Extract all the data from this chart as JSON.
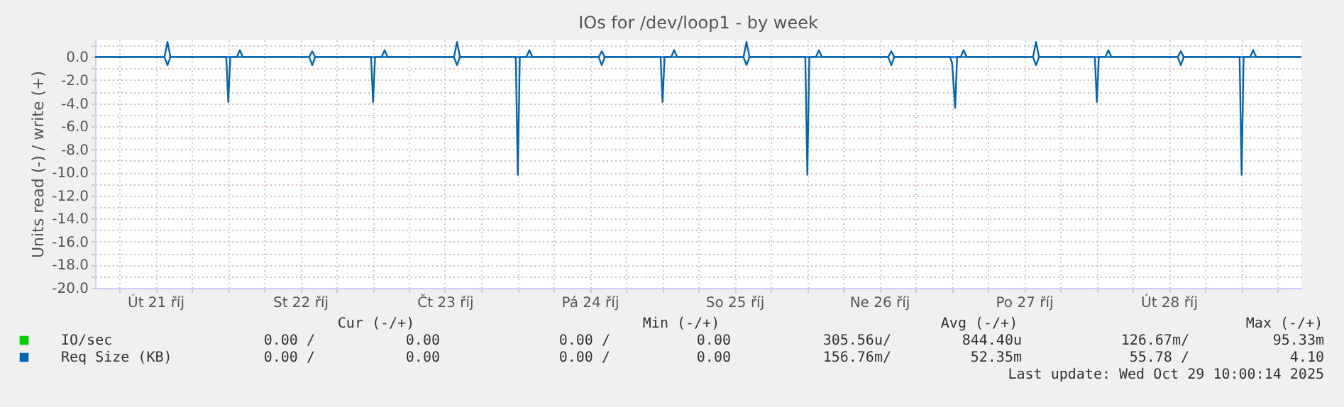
{
  "chart_data": {
    "type": "line",
    "title": "IOs for /dev/loop1 - by week",
    "ylabel": "Units read (-) / write (+)",
    "xlim": [
      "2025-10-21T02:00",
      "2025-10-29T10:00"
    ],
    "ylim": [
      -20,
      1.5
    ],
    "yticks": [
      {
        "value": 1,
        "label": null
      },
      {
        "value": 0,
        "label": "0.0"
      },
      {
        "value": -1,
        "label": null
      },
      {
        "value": -2,
        "label": "-2.0"
      },
      {
        "value": -3,
        "label": null
      },
      {
        "value": -4,
        "label": "-4.0"
      },
      {
        "value": -5,
        "label": null
      },
      {
        "value": -6,
        "label": "-6.0"
      },
      {
        "value": -7,
        "label": null
      },
      {
        "value": -8,
        "label": "-8.0"
      },
      {
        "value": -9,
        "label": null
      },
      {
        "value": -10,
        "label": "-10.0"
      },
      {
        "value": -11,
        "label": null
      },
      {
        "value": -12,
        "label": "-12.0"
      },
      {
        "value": -13,
        "label": null
      },
      {
        "value": -14,
        "label": "-14.0"
      },
      {
        "value": -15,
        "label": null
      },
      {
        "value": -16,
        "label": "-16.0"
      },
      {
        "value": -17,
        "label": null
      },
      {
        "value": -18,
        "label": "-18.0"
      },
      {
        "value": -19,
        "label": null
      },
      {
        "value": -20,
        "label": "-20.0"
      }
    ],
    "xticks": [
      {
        "value": "2025-10-21T06:00",
        "label": null
      },
      {
        "value": "2025-10-21T12:00",
        "label": "Út 21 říj"
      },
      {
        "value": "2025-10-21T18:00",
        "label": null
      },
      {
        "value": "2025-10-22T00:00",
        "label": null
      },
      {
        "value": "2025-10-22T06:00",
        "label": null
      },
      {
        "value": "2025-10-22T12:00",
        "label": "St 22 říj"
      },
      {
        "value": "2025-10-22T18:00",
        "label": null
      },
      {
        "value": "2025-10-23T00:00",
        "label": null
      },
      {
        "value": "2025-10-23T06:00",
        "label": null
      },
      {
        "value": "2025-10-23T12:00",
        "label": "Čt 23 říj"
      },
      {
        "value": "2025-10-23T18:00",
        "label": null
      },
      {
        "value": "2025-10-24T00:00",
        "label": null
      },
      {
        "value": "2025-10-24T06:00",
        "label": null
      },
      {
        "value": "2025-10-24T12:00",
        "label": "Pá 24 říj"
      },
      {
        "value": "2025-10-24T18:00",
        "label": null
      },
      {
        "value": "2025-10-25T00:00",
        "label": null
      },
      {
        "value": "2025-10-25T06:00",
        "label": null
      },
      {
        "value": "2025-10-25T12:00",
        "label": "So 25 říj"
      },
      {
        "value": "2025-10-25T18:00",
        "label": null
      },
      {
        "value": "2025-10-26T00:00",
        "label": null
      },
      {
        "value": "2025-10-26T06:00",
        "label": null
      },
      {
        "value": "2025-10-26T12:00",
        "label": "Ne 26 říj"
      },
      {
        "value": "2025-10-26T18:00",
        "label": null
      },
      {
        "value": "2025-10-27T00:00",
        "label": null
      },
      {
        "value": "2025-10-27T06:00",
        "label": null
      },
      {
        "value": "2025-10-27T12:00",
        "label": "Po 27 říj"
      },
      {
        "value": "2025-10-27T18:00",
        "label": null
      },
      {
        "value": "2025-10-28T00:00",
        "label": null
      },
      {
        "value": "2025-10-28T06:00",
        "label": null
      },
      {
        "value": "2025-10-28T12:00",
        "label": "Út 28 říj"
      },
      {
        "value": "2025-10-28T18:00",
        "label": null
      },
      {
        "value": "2025-10-29T00:00",
        "label": null
      },
      {
        "value": "2025-10-29T06:00",
        "label": null
      }
    ],
    "grid": true,
    "legend": "bottom",
    "line_style": "solid",
    "marker": "none",
    "series": [
      {
        "name": "IO/sec",
        "color": "#00cc00"
      },
      {
        "name": "Req Size (KB)",
        "color": "#0066b3",
        "x": [
          "2025-10-21T02:00",
          "2025-10-21T13:30",
          "2025-10-21T14:00",
          "2025-10-21T14:30",
          "2025-10-21T23:45",
          "2025-10-22T00:05",
          "2025-10-22T00:25",
          "2025-10-22T13:30",
          "2025-10-22T14:00",
          "2025-10-22T14:30",
          "2025-10-22T23:45",
          "2025-10-23T00:05",
          "2025-10-23T00:25",
          "2025-10-23T13:30",
          "2025-10-23T14:00",
          "2025-10-23T14:30",
          "2025-10-23T23:45",
          "2025-10-24T00:05",
          "2025-10-24T00:25",
          "2025-10-24T13:30",
          "2025-10-24T14:00",
          "2025-10-24T14:30",
          "2025-10-24T23:45",
          "2025-10-25T00:05",
          "2025-10-25T00:25",
          "2025-10-25T13:30",
          "2025-10-25T14:00",
          "2025-10-25T14:30",
          "2025-10-25T23:45",
          "2025-10-26T00:05",
          "2025-10-26T00:25",
          "2025-10-26T13:30",
          "2025-10-26T14:00",
          "2025-10-26T14:30",
          "2025-10-26T23:45",
          "2025-10-27T00:05",
          "2025-10-27T00:35",
          "2025-10-27T00:55",
          "2025-10-27T13:30",
          "2025-10-27T14:00",
          "2025-10-27T14:30",
          "2025-10-27T23:45",
          "2025-10-28T00:05",
          "2025-10-28T00:25",
          "2025-10-28T13:30",
          "2025-10-28T14:00",
          "2025-10-28T14:30",
          "2025-10-28T23:45",
          "2025-10-29T00:05",
          "2025-10-29T00:25",
          "2025-10-29T10:00"
        ],
        "values": [
          0,
          0,
          -0.7,
          0,
          0,
          -3.9,
          0,
          0,
          -0.7,
          0,
          0,
          -3.9,
          0,
          0,
          -0.7,
          0,
          0,
          -10.2,
          0,
          0,
          -0.7,
          0,
          0,
          -3.9,
          0,
          0,
          -0.7,
          0,
          0,
          -10.2,
          0,
          0,
          -0.7,
          0,
          0,
          -0.5,
          -4.4,
          0,
          0,
          -0.7,
          0,
          0,
          -3.9,
          0,
          0,
          -0.7,
          0,
          0,
          -10.2,
          0,
          0
        ]
      },
      {
        "color": "#0066b3",
        "x": [
          "2025-10-21T02:00",
          "2025-10-21T13:30",
          "2025-10-21T14:00",
          "2025-10-21T14:30",
          "2025-10-22T01:30",
          "2025-10-22T02:00",
          "2025-10-22T02:30",
          "2025-10-22T13:30",
          "2025-10-22T14:00",
          "2025-10-22T14:30",
          "2025-10-23T01:30",
          "2025-10-23T02:00",
          "2025-10-23T02:30",
          "2025-10-23T13:30",
          "2025-10-23T14:00",
          "2025-10-23T14:30",
          "2025-10-24T01:30",
          "2025-10-24T02:00",
          "2025-10-24T02:30",
          "2025-10-24T13:30",
          "2025-10-24T14:00",
          "2025-10-24T14:30",
          "2025-10-25T01:30",
          "2025-10-25T02:00",
          "2025-10-25T02:30",
          "2025-10-25T13:30",
          "2025-10-25T14:00",
          "2025-10-25T14:30",
          "2025-10-26T01:30",
          "2025-10-26T02:00",
          "2025-10-26T02:30",
          "2025-10-26T13:30",
          "2025-10-26T14:00",
          "2025-10-26T14:30",
          "2025-10-27T01:30",
          "2025-10-27T02:00",
          "2025-10-27T02:30",
          "2025-10-27T13:30",
          "2025-10-27T14:00",
          "2025-10-27T14:30",
          "2025-10-28T01:30",
          "2025-10-28T02:00",
          "2025-10-28T02:30",
          "2025-10-28T13:30",
          "2025-10-28T14:00",
          "2025-10-28T14:30",
          "2025-10-29T01:30",
          "2025-10-29T02:00",
          "2025-10-29T02:30",
          "2025-10-29T10:00"
        ],
        "values": [
          0,
          0,
          1.3,
          0,
          0,
          0.6,
          0,
          0,
          0.5,
          0,
          0,
          0.6,
          0,
          0,
          1.3,
          0,
          0,
          0.6,
          0,
          0,
          0.5,
          0,
          0,
          0.6,
          0,
          0,
          1.3,
          0,
          0,
          0.6,
          0,
          0,
          0.5,
          0,
          0,
          0.6,
          0,
          0,
          1.3,
          0,
          0,
          0.6,
          0,
          0,
          0.5,
          0,
          0,
          0.6,
          0,
          0
        ]
      }
    ],
    "annotations": [
      "Cur (-/+)",
      "Min (-/+)",
      "Avg (-/+)",
      "Max (-/+)",
      "0.00 /",
      "0.00",
      "0.00 /",
      "0.00",
      "305.56u/",
      "844.40u",
      "126.67m/",
      "95.33m",
      "0.00 /",
      "0.00",
      "0.00 /",
      "0.00",
      "156.76m/",
      "52.35m",
      "55.78 /",
      "4.10",
      "Last update: Wed Oct 29 10:00:14 2025"
    ]
  }
}
